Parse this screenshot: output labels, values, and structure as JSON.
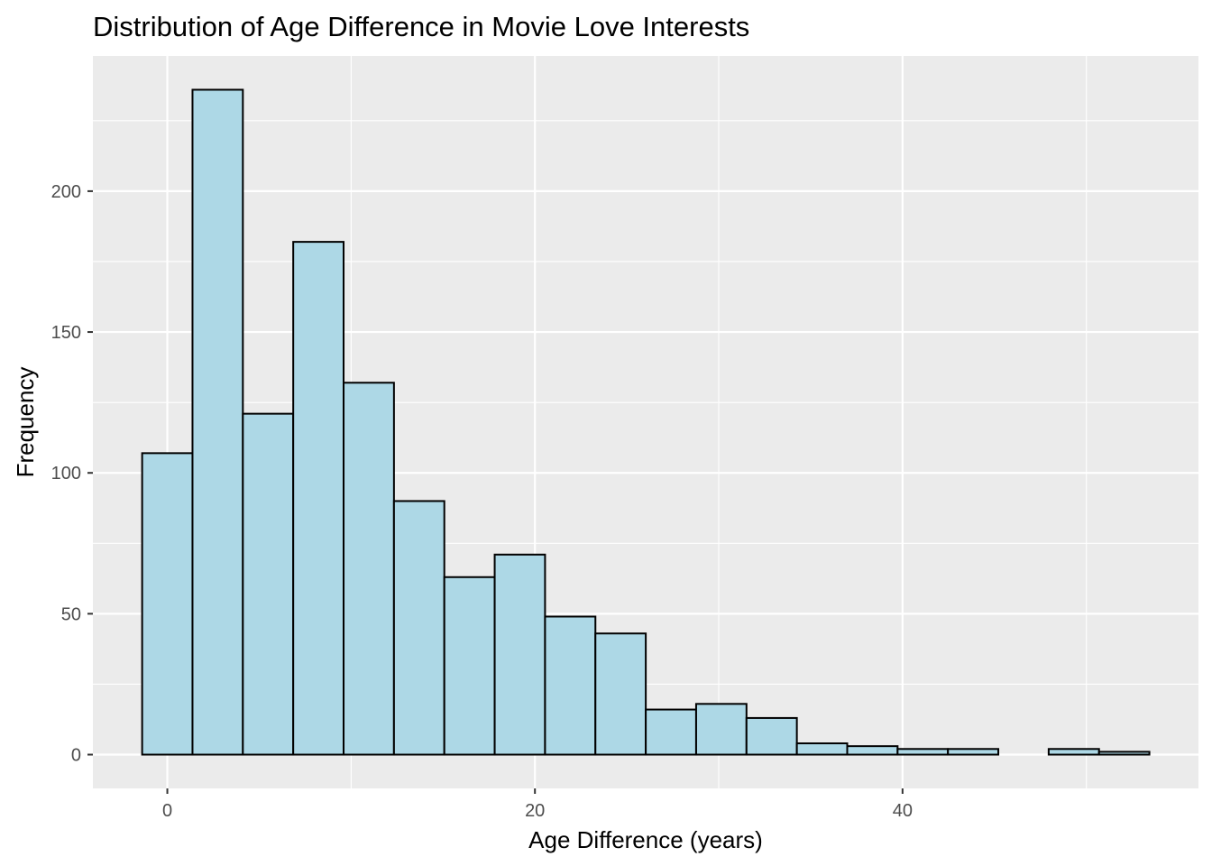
{
  "chart_data": {
    "type": "bar",
    "title": "Distribution of Age Difference in Movie Love Interests",
    "xlabel": "Age Difference (years)",
    "ylabel": "Frequency",
    "bin_width": 2.74,
    "bins": [
      {
        "x0": -1.37,
        "x1": 1.37,
        "count": 107
      },
      {
        "x0": 1.37,
        "x1": 4.11,
        "count": 236
      },
      {
        "x0": 4.11,
        "x1": 6.85,
        "count": 121
      },
      {
        "x0": 6.85,
        "x1": 9.59,
        "count": 182
      },
      {
        "x0": 9.59,
        "x1": 12.33,
        "count": 132
      },
      {
        "x0": 12.33,
        "x1": 15.07,
        "count": 90
      },
      {
        "x0": 15.07,
        "x1": 17.81,
        "count": 63
      },
      {
        "x0": 17.81,
        "x1": 20.55,
        "count": 71
      },
      {
        "x0": 20.55,
        "x1": 23.29,
        "count": 49
      },
      {
        "x0": 23.29,
        "x1": 26.03,
        "count": 43
      },
      {
        "x0": 26.03,
        "x1": 28.77,
        "count": 16
      },
      {
        "x0": 28.77,
        "x1": 31.51,
        "count": 18
      },
      {
        "x0": 31.51,
        "x1": 34.25,
        "count": 13
      },
      {
        "x0": 34.25,
        "x1": 36.99,
        "count": 4
      },
      {
        "x0": 36.99,
        "x1": 39.73,
        "count": 3
      },
      {
        "x0": 39.73,
        "x1": 42.47,
        "count": 2
      },
      {
        "x0": 42.47,
        "x1": 45.21,
        "count": 2
      },
      {
        "x0": 45.21,
        "x1": 47.95,
        "count": 0
      },
      {
        "x0": 47.95,
        "x1": 50.69,
        "count": 2
      },
      {
        "x0": 50.69,
        "x1": 53.43,
        "count": 1
      }
    ],
    "xlim": [
      -4.05,
      56.1
    ],
    "ylim": [
      -12,
      248
    ],
    "x_ticks": [
      0,
      20,
      40
    ],
    "y_ticks": [
      0,
      50,
      100,
      150,
      200
    ],
    "grid": true,
    "colors": {
      "bar_fill": "#add8e6",
      "bar_outline": "#000000",
      "panel_background": "#ebebeb",
      "grid_line": "#ffffff",
      "tick_label": "#4d4d4d"
    }
  }
}
